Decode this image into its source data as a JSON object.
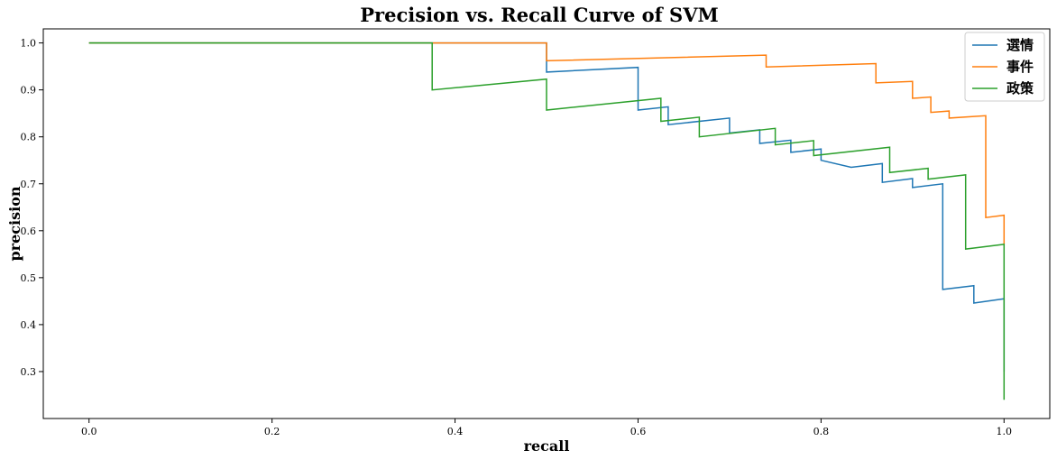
{
  "chart_data": {
    "type": "line",
    "title": "Precision vs. Recall Curve of SVM",
    "xlabel": "recall",
    "ylabel": "precision",
    "xlim": [
      -0.05,
      1.05
    ],
    "ylim": [
      0.2,
      1.03
    ],
    "xticks": [
      "0.0",
      "0.2",
      "0.4",
      "0.6",
      "0.8",
      "1.0"
    ],
    "yticks": [
      "0.3",
      "0.4",
      "0.5",
      "0.6",
      "0.7",
      "0.8",
      "0.9",
      "1.0"
    ],
    "legend_position": "top-right",
    "series": [
      {
        "name": "選情",
        "color": "#1f77b4",
        "points": [
          [
            0.0,
            1.0
          ],
          [
            0.5,
            1.0
          ],
          [
            0.5,
            0.938
          ],
          [
            0.6,
            0.948
          ],
          [
            0.6,
            0.857
          ],
          [
            0.633,
            0.864
          ],
          [
            0.633,
            0.826
          ],
          [
            0.7,
            0.84
          ],
          [
            0.7,
            0.808
          ],
          [
            0.733,
            0.815
          ],
          [
            0.733,
            0.786
          ],
          [
            0.767,
            0.793
          ],
          [
            0.767,
            0.767
          ],
          [
            0.8,
            0.774
          ],
          [
            0.8,
            0.75
          ],
          [
            0.833,
            0.735
          ],
          [
            0.867,
            0.743
          ],
          [
            0.867,
            0.703
          ],
          [
            0.9,
            0.711
          ],
          [
            0.9,
            0.692
          ],
          [
            0.933,
            0.7
          ],
          [
            0.933,
            0.475
          ],
          [
            0.967,
            0.483
          ],
          [
            0.967,
            0.446
          ],
          [
            1.0,
            0.455
          ],
          [
            1.0,
            0.3
          ]
        ]
      },
      {
        "name": "事件",
        "color": "#ff7f0e",
        "points": [
          [
            0.0,
            1.0
          ],
          [
            0.5,
            1.0
          ],
          [
            0.5,
            0.962
          ],
          [
            0.74,
            0.974
          ],
          [
            0.74,
            0.949
          ],
          [
            0.86,
            0.956
          ],
          [
            0.86,
            0.915
          ],
          [
            0.9,
            0.918
          ],
          [
            0.9,
            0.882
          ],
          [
            0.92,
            0.885
          ],
          [
            0.92,
            0.852
          ],
          [
            0.94,
            0.855
          ],
          [
            0.94,
            0.84
          ],
          [
            0.98,
            0.845
          ],
          [
            0.98,
            0.628
          ],
          [
            1.0,
            0.633
          ],
          [
            1.0,
            0.57
          ]
        ]
      },
      {
        "name": "政策",
        "color": "#2ca02c",
        "points": [
          [
            0.0,
            1.0
          ],
          [
            0.375,
            1.0
          ],
          [
            0.375,
            0.9
          ],
          [
            0.5,
            0.923
          ],
          [
            0.5,
            0.857
          ],
          [
            0.625,
            0.882
          ],
          [
            0.625,
            0.833
          ],
          [
            0.667,
            0.842
          ],
          [
            0.667,
            0.8
          ],
          [
            0.75,
            0.818
          ],
          [
            0.75,
            0.783
          ],
          [
            0.792,
            0.792
          ],
          [
            0.792,
            0.76
          ],
          [
            0.875,
            0.778
          ],
          [
            0.875,
            0.724
          ],
          [
            0.917,
            0.733
          ],
          [
            0.917,
            0.71
          ],
          [
            0.958,
            0.719
          ],
          [
            0.958,
            0.561
          ],
          [
            1.0,
            0.571
          ],
          [
            1.0,
            0.24
          ]
        ]
      }
    ]
  }
}
